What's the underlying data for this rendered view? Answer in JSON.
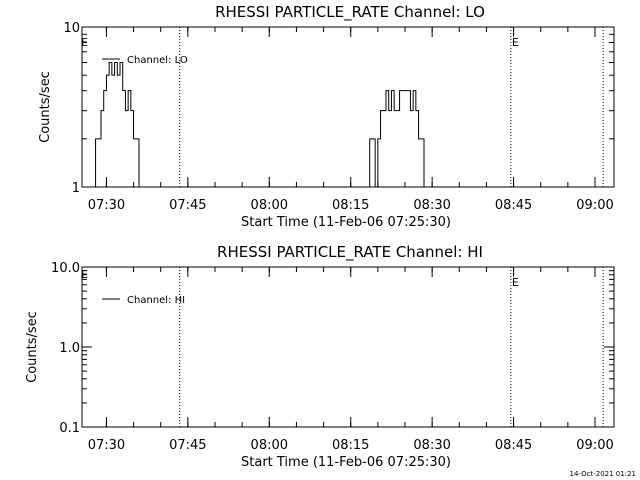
{
  "chart_data": [
    {
      "type": "line",
      "title": "RHESSI PARTICLE_RATE Channel: LO",
      "xlabel": "Start Time (11-Feb-06 07:25:30)",
      "ylabel": "Counts/sec",
      "x_scale": "time",
      "y_scale": "log",
      "xlim": [
        "07:25:30",
        "09:03:30"
      ],
      "ylim": [
        1,
        10
      ],
      "x_ticks": [
        "07:30",
        "07:45",
        "08:00",
        "08:15",
        "08:30",
        "08:45",
        "09:00"
      ],
      "y_ticks": [
        "1",
        "10"
      ],
      "legend": "Channel: LO",
      "markers": [
        {
          "time": "07:43:30",
          "label": ""
        },
        {
          "time": "08:44:30",
          "label": "E"
        },
        {
          "time": "09:01:30",
          "label": ""
        }
      ],
      "start_marker_label": "E",
      "series": [
        {
          "x": [
            "07:27:00",
            "07:28:00",
            "07:29:00",
            "07:29:30",
            "07:30:00",
            "07:30:30",
            "07:31:00",
            "07:31:30",
            "07:32:00",
            "07:32:30",
            "07:33:00",
            "07:33:30",
            "07:34:00",
            "07:34:30",
            "07:35:00",
            "07:36:00"
          ],
          "y": [
            1,
            2,
            3,
            4,
            5,
            6,
            5,
            6,
            5,
            6,
            4,
            3,
            4,
            3,
            2,
            1
          ]
        },
        {
          "x": [
            "08:18:00",
            "08:18:30",
            "08:19:30",
            "08:20:00",
            "08:20:30",
            "08:21:00",
            "08:21:30",
            "08:22:00",
            "08:22:30",
            "08:23:00",
            "08:24:00",
            "08:25:00",
            "08:26:00",
            "08:26:30",
            "08:27:00",
            "08:27:30",
            "08:28:30"
          ],
          "y": [
            1,
            2,
            1,
            2,
            3,
            3,
            4,
            3,
            4,
            3,
            4,
            4,
            3,
            4,
            3,
            2,
            1
          ]
        }
      ]
    },
    {
      "type": "line",
      "title": "RHESSI PARTICLE_RATE Channel: HI",
      "xlabel": "Start Time (11-Feb-06 07:25:30)",
      "ylabel": "Counts/sec",
      "x_scale": "time",
      "y_scale": "log",
      "xlim": [
        "07:25:30",
        "09:03:30"
      ],
      "ylim": [
        0.1,
        10
      ],
      "x_ticks": [
        "07:30",
        "07:45",
        "08:00",
        "08:15",
        "08:30",
        "08:45",
        "09:00"
      ],
      "y_ticks": [
        "0.1",
        "1.0",
        "10.0"
      ],
      "legend": "Channel: HI",
      "markers": [
        {
          "time": "07:43:30",
          "label": ""
        },
        {
          "time": "08:44:30",
          "label": "E"
        },
        {
          "time": "09:01:30",
          "label": ""
        }
      ],
      "start_marker_label": "E",
      "series": []
    }
  ],
  "footer_timestamp": "14-Oct-2021 01:21"
}
